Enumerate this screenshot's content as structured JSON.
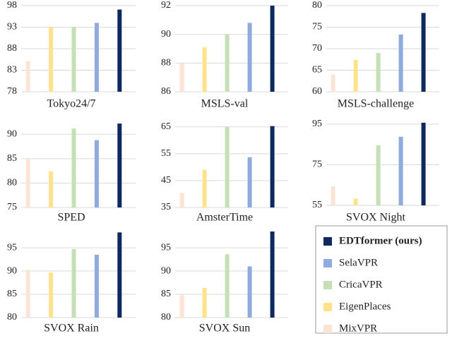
{
  "legend": {
    "entries": [
      {
        "name": "EDTformer (ours)",
        "color": "#0e2860",
        "bold": true
      },
      {
        "name": "SelaVPR",
        "color": "#8faadc"
      },
      {
        "name": "CricaVPR",
        "color": "#c5e0b4"
      },
      {
        "name": "EigenPlaces",
        "color": "#ffe38a"
      },
      {
        "name": "MixVPR",
        "color": "#fbe3d6"
      }
    ]
  },
  "bar_colors": [
    "#fbe3d6",
    "#ffe38a",
    "#c5e0b4",
    "#8faadc",
    "#0e2860"
  ],
  "chart_data": [
    {
      "type": "bar",
      "xlabel": "Tokyo24/7",
      "values": [
        85.1,
        93.0,
        93.0,
        94.0,
        97.1
      ],
      "ylim": [
        78,
        98
      ],
      "yticks": [
        78,
        83,
        88,
        93,
        98
      ],
      "grid": true
    },
    {
      "type": "bar",
      "xlabel": "MSLS-val",
      "values": [
        88.0,
        89.1,
        90.0,
        90.8,
        92.0
      ],
      "ylim": [
        86,
        92
      ],
      "yticks": [
        86,
        88,
        90,
        92
      ],
      "grid": true
    },
    {
      "type": "bar",
      "xlabel": "MSLS-challenge",
      "values": [
        64.0,
        67.4,
        69.0,
        73.3,
        78.3
      ],
      "ylim": [
        60,
        80
      ],
      "yticks": [
        60,
        65,
        70,
        75,
        80
      ],
      "grid": true
    },
    {
      "type": "bar",
      "xlabel": "SPED",
      "values": [
        85.1,
        82.4,
        91.2,
        88.8,
        92.2
      ],
      "ylim": [
        75,
        92.5
      ],
      "yticks": [
        75,
        80,
        85,
        90
      ],
      "grid": true
    },
    {
      "type": "bar",
      "xlabel": "AmsterTime",
      "values": [
        40.5,
        49.0,
        65.0,
        53.7,
        65.3
      ],
      "ylim": [
        35,
        66
      ],
      "yticks": [
        35,
        45,
        55,
        65
      ],
      "grid": true
    },
    {
      "type": "bar",
      "xlabel": "SVOX Night",
      "values": [
        64.4,
        58.4,
        84.6,
        88.8,
        95.7
      ],
      "ylim": [
        55,
        96
      ],
      "yticks": [
        55,
        75,
        95
      ],
      "grid": true
    },
    {
      "type": "bar",
      "xlabel": "SVOX Rain",
      "values": [
        90.2,
        89.7,
        94.7,
        93.5,
        98.3
      ],
      "ylim": [
        80,
        98.5
      ],
      "yticks": [
        80,
        85,
        90,
        95
      ],
      "grid": true
    },
    {
      "type": "bar",
      "xlabel": "SVOX Sun",
      "values": [
        84.8,
        86.4,
        93.6,
        91.0,
        98.5
      ],
      "ylim": [
        80,
        98.5
      ],
      "yticks": [
        80,
        85,
        90,
        95
      ],
      "grid": true
    }
  ]
}
